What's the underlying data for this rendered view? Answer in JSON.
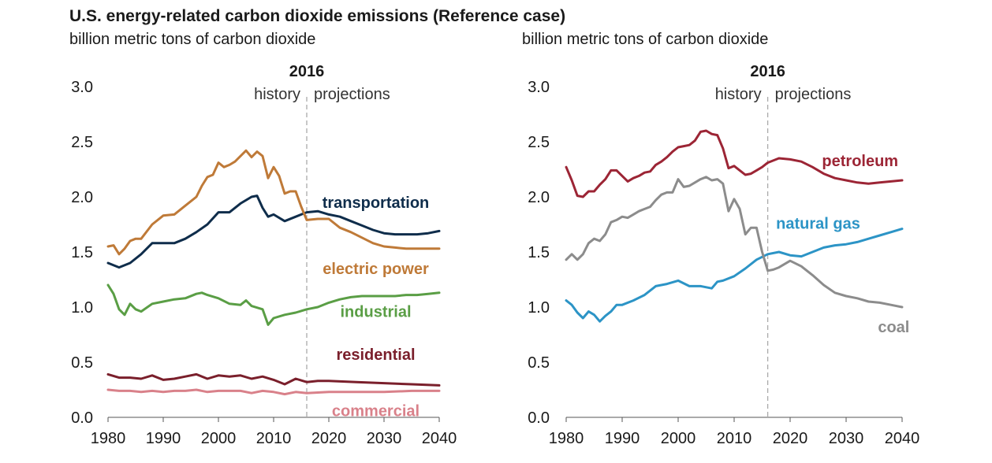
{
  "title": "U.S. energy-related carbon dioxide emissions (Reference case)",
  "chart_data": [
    {
      "type": "line",
      "ylabel": "billion metric tons of carbon dioxide",
      "xlim": [
        1980,
        2040
      ],
      "ylim": [
        0,
        3.0
      ],
      "xticks": [
        "1980",
        "1990",
        "2000",
        "2010",
        "2020",
        "2030",
        "2040"
      ],
      "yticks": [
        "0.0",
        "0.5",
        "1.0",
        "1.5",
        "2.0",
        "2.5",
        "3.0"
      ],
      "divider": {
        "x": 2016,
        "label": "2016",
        "left": "history",
        "right": "projections"
      },
      "grid": false,
      "legend": "inline labels",
      "series": [
        {
          "name": "transportation",
          "color": "#0f2d4b",
          "label_x": 2028.5,
          "label_y": 1.95,
          "x": [
            1980,
            1982,
            1984,
            1986,
            1988,
            1990,
            1992,
            1994,
            1996,
            1998,
            2000,
            2002,
            2004,
            2006,
            2007,
            2008,
            2009,
            2010,
            2012,
            2014,
            2016,
            2018,
            2020,
            2022,
            2024,
            2026,
            2028,
            2030,
            2032,
            2034,
            2036,
            2038,
            2040
          ],
          "values": [
            1.4,
            1.36,
            1.4,
            1.48,
            1.58,
            1.58,
            1.58,
            1.62,
            1.68,
            1.75,
            1.86,
            1.86,
            1.94,
            2.0,
            2.01,
            1.9,
            1.82,
            1.84,
            1.78,
            1.82,
            1.86,
            1.87,
            1.84,
            1.82,
            1.78,
            1.74,
            1.7,
            1.67,
            1.66,
            1.66,
            1.66,
            1.67,
            1.69
          ]
        },
        {
          "name": "electric power",
          "color": "#bf7a38",
          "label_x": 2028.5,
          "label_y": 1.35,
          "x": [
            1980,
            1981,
            1982,
            1983,
            1984,
            1985,
            1986,
            1988,
            1990,
            1992,
            1994,
            1996,
            1997,
            1998,
            1999,
            2000,
            2001,
            2002,
            2003,
            2004,
            2005,
            2006,
            2007,
            2008,
            2009,
            2010,
            2011,
            2012,
            2013,
            2014,
            2015,
            2016,
            2018,
            2020,
            2022,
            2024,
            2026,
            2028,
            2030,
            2032,
            2034,
            2036,
            2038,
            2040
          ],
          "values": [
            1.55,
            1.56,
            1.48,
            1.53,
            1.6,
            1.62,
            1.62,
            1.75,
            1.83,
            1.84,
            1.92,
            2.0,
            2.1,
            2.18,
            2.2,
            2.31,
            2.27,
            2.29,
            2.32,
            2.37,
            2.42,
            2.36,
            2.41,
            2.37,
            2.17,
            2.27,
            2.19,
            2.03,
            2.05,
            2.05,
            1.91,
            1.79,
            1.8,
            1.8,
            1.72,
            1.68,
            1.63,
            1.58,
            1.55,
            1.54,
            1.53,
            1.53,
            1.53,
            1.53
          ]
        },
        {
          "name": "industrial",
          "color": "#5a9e45",
          "label_x": 2028.5,
          "label_y": 0.96,
          "x": [
            1980,
            1981,
            1982,
            1983,
            1984,
            1985,
            1986,
            1988,
            1990,
            1992,
            1994,
            1996,
            1997,
            1998,
            2000,
            2002,
            2004,
            2005,
            2006,
            2008,
            2009,
            2010,
            2012,
            2014,
            2016,
            2018,
            2020,
            2022,
            2024,
            2026,
            2028,
            2030,
            2032,
            2034,
            2036,
            2038,
            2040
          ],
          "values": [
            1.2,
            1.12,
            0.98,
            0.93,
            1.03,
            0.98,
            0.96,
            1.03,
            1.05,
            1.07,
            1.08,
            1.12,
            1.13,
            1.11,
            1.08,
            1.03,
            1.02,
            1.06,
            1.01,
            0.98,
            0.84,
            0.9,
            0.93,
            0.95,
            0.98,
            1.0,
            1.04,
            1.07,
            1.09,
            1.1,
            1.1,
            1.1,
            1.1,
            1.11,
            1.11,
            1.12,
            1.13
          ]
        },
        {
          "name": "residential",
          "color": "#7a1f2b",
          "label_x": 2028.5,
          "label_y": 0.57,
          "x": [
            1980,
            1982,
            1984,
            1986,
            1988,
            1990,
            1992,
            1994,
            1996,
            1998,
            2000,
            2002,
            2004,
            2006,
            2008,
            2010,
            2012,
            2014,
            2016,
            2018,
            2020,
            2025,
            2030,
            2035,
            2040
          ],
          "values": [
            0.39,
            0.36,
            0.36,
            0.35,
            0.38,
            0.34,
            0.35,
            0.37,
            0.39,
            0.35,
            0.38,
            0.37,
            0.38,
            0.35,
            0.37,
            0.34,
            0.3,
            0.35,
            0.32,
            0.33,
            0.33,
            0.32,
            0.31,
            0.3,
            0.29
          ]
        },
        {
          "name": "commercial",
          "color": "#d9818a",
          "label_x": 2028.5,
          "label_y": 0.06,
          "x": [
            1980,
            1982,
            1984,
            1986,
            1988,
            1990,
            1992,
            1994,
            1996,
            1998,
            2000,
            2002,
            2004,
            2006,
            2008,
            2010,
            2012,
            2014,
            2016,
            2020,
            2025,
            2030,
            2035,
            2040
          ],
          "values": [
            0.25,
            0.24,
            0.24,
            0.23,
            0.24,
            0.23,
            0.24,
            0.24,
            0.25,
            0.23,
            0.24,
            0.24,
            0.24,
            0.22,
            0.24,
            0.23,
            0.21,
            0.23,
            0.22,
            0.23,
            0.23,
            0.23,
            0.24,
            0.24
          ]
        }
      ]
    },
    {
      "type": "line",
      "ylabel": "billion metric tons of carbon dioxide",
      "xlim": [
        1980,
        2040
      ],
      "ylim": [
        0,
        3.0
      ],
      "xticks": [
        "1980",
        "1990",
        "2000",
        "2010",
        "2020",
        "2030",
        "2040"
      ],
      "yticks": [
        "0.0",
        "0.5",
        "1.0",
        "1.5",
        "2.0",
        "2.5",
        "3.0"
      ],
      "divider": {
        "x": 2016,
        "label": "2016",
        "left": "history",
        "right": "projections"
      },
      "grid": false,
      "legend": "inline labels",
      "series": [
        {
          "name": "petroleum",
          "color": "#9c2535",
          "label_x": 2032.5,
          "label_y": 2.33,
          "x": [
            1980,
            1981,
            1982,
            1983,
            1984,
            1985,
            1986,
            1987,
            1988,
            1989,
            1990,
            1991,
            1992,
            1993,
            1994,
            1995,
            1996,
            1997,
            1998,
            1999,
            2000,
            2001,
            2002,
            2003,
            2004,
            2005,
            2006,
            2007,
            2008,
            2009,
            2010,
            2011,
            2012,
            2013,
            2014,
            2015,
            2016,
            2018,
            2020,
            2022,
            2024,
            2026,
            2028,
            2030,
            2032,
            2034,
            2036,
            2038,
            2040
          ],
          "values": [
            2.27,
            2.15,
            2.01,
            2.0,
            2.05,
            2.05,
            2.11,
            2.16,
            2.24,
            2.24,
            2.19,
            2.14,
            2.17,
            2.19,
            2.22,
            2.23,
            2.29,
            2.32,
            2.36,
            2.41,
            2.45,
            2.46,
            2.47,
            2.51,
            2.59,
            2.6,
            2.57,
            2.56,
            2.44,
            2.26,
            2.28,
            2.24,
            2.2,
            2.21,
            2.24,
            2.27,
            2.31,
            2.35,
            2.34,
            2.32,
            2.27,
            2.21,
            2.17,
            2.15,
            2.13,
            2.12,
            2.13,
            2.14,
            2.15
          ]
        },
        {
          "name": "natural gas",
          "color": "#2c94c6",
          "label_x": 2025,
          "label_y": 1.76,
          "x": [
            1980,
            1981,
            1982,
            1983,
            1984,
            1985,
            1986,
            1987,
            1988,
            1989,
            1990,
            1992,
            1994,
            1996,
            1998,
            2000,
            2002,
            2004,
            2006,
            2007,
            2008,
            2010,
            2012,
            2014,
            2016,
            2018,
            2020,
            2022,
            2024,
            2026,
            2028,
            2030,
            2032,
            2034,
            2036,
            2038,
            2040
          ],
          "values": [
            1.06,
            1.02,
            0.95,
            0.9,
            0.96,
            0.93,
            0.87,
            0.92,
            0.96,
            1.02,
            1.02,
            1.06,
            1.11,
            1.19,
            1.21,
            1.24,
            1.19,
            1.19,
            1.17,
            1.23,
            1.24,
            1.28,
            1.35,
            1.43,
            1.48,
            1.5,
            1.47,
            1.46,
            1.5,
            1.54,
            1.56,
            1.57,
            1.59,
            1.62,
            1.65,
            1.68,
            1.71
          ]
        },
        {
          "name": "coal",
          "color": "#8c8c8c",
          "label_x": 2038.5,
          "label_y": 0.82,
          "x": [
            1980,
            1981,
            1982,
            1983,
            1984,
            1985,
            1986,
            1987,
            1988,
            1989,
            1990,
            1991,
            1992,
            1993,
            1994,
            1995,
            1996,
            1997,
            1998,
            1999,
            2000,
            2001,
            2002,
            2003,
            2004,
            2005,
            2006,
            2007,
            2008,
            2009,
            2010,
            2011,
            2012,
            2013,
            2014,
            2015,
            2016,
            2017,
            2018,
            2020,
            2022,
            2024,
            2026,
            2028,
            2030,
            2032,
            2034,
            2036,
            2038,
            2040
          ],
          "values": [
            1.43,
            1.48,
            1.43,
            1.48,
            1.58,
            1.62,
            1.6,
            1.66,
            1.77,
            1.79,
            1.82,
            1.81,
            1.84,
            1.87,
            1.89,
            1.91,
            1.97,
            2.02,
            2.04,
            2.04,
            2.16,
            2.09,
            2.1,
            2.13,
            2.16,
            2.18,
            2.15,
            2.16,
            2.12,
            1.87,
            1.98,
            1.89,
            1.66,
            1.72,
            1.72,
            1.5,
            1.33,
            1.34,
            1.36,
            1.42,
            1.37,
            1.29,
            1.2,
            1.13,
            1.1,
            1.08,
            1.05,
            1.04,
            1.02,
            1.0
          ]
        }
      ]
    }
  ]
}
